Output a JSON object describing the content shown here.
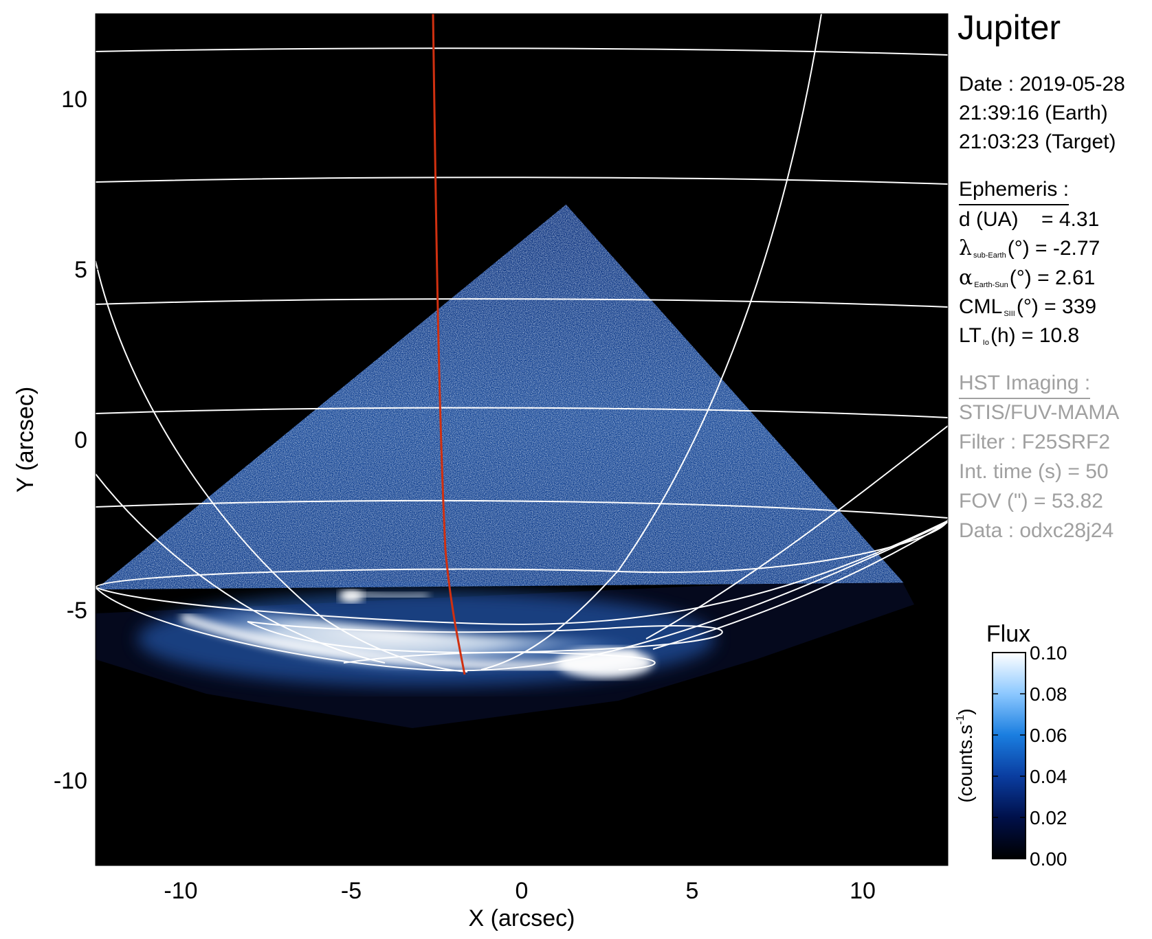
{
  "chart_data": {
    "type": "heatmap",
    "title": "Jupiter",
    "xlabel": "X (arcsec)",
    "ylabel": "Y (arcsec)",
    "xlim": [
      -12.5,
      12.5
    ],
    "ylim": [
      -12.5,
      12.5
    ],
    "x_ticks": [
      -10,
      -5,
      0,
      5,
      10
    ],
    "y_ticks": [
      -10,
      -5,
      0,
      5,
      10
    ],
    "x_tick_labels": [
      "-10",
      "-5",
      "0",
      "5",
      "10"
    ],
    "y_tick_labels": [
      "-10",
      "-5",
      "0",
      "5",
      "10"
    ],
    "grid": false,
    "image_region": {
      "shape": "triangle",
      "vertices": [
        [
          -12.5,
          -4.4
        ],
        [
          1.3,
          6.9
        ],
        [
          11.2,
          -4.2
        ]
      ]
    },
    "auroral_oval_center": [
      -2.0,
      -6.7
    ],
    "io_footprint_spot": [
      -5.0,
      -4.6
    ],
    "reference_meridian_color": "#d03010",
    "colorbar": {
      "label": "Flux",
      "units": "(counts.s",
      "units_superscript": "-1",
      "units_close": ")",
      "range": [
        0.0,
        0.1
      ],
      "ticks": [
        "0.00",
        "0.02",
        "0.04",
        "0.06",
        "0.08",
        "0.10"
      ],
      "colors": [
        "#000000",
        "#00104a",
        "#0a3da0",
        "#1a7ee0",
        "#8cc8ff",
        "#ffffff"
      ]
    }
  },
  "info": {
    "title": "Jupiter",
    "date": "Date : 2019-05-28",
    "time_earth": "21:39:16 (Earth)",
    "time_target": "21:03:23 (Target)",
    "ephemeris_header": "Ephemeris :",
    "distance": "d (UA)    = 4.31",
    "lat_symbol": "λ",
    "lat_sub": "sub-Earth",
    "lat_rest": "(°) = -2.77",
    "phase_symbol": "α",
    "phase_sub": "Earth-Sun",
    "phase_rest": "(°) = 2.61",
    "cml_main": "CML",
    "cml_sub": "SIII",
    "cml_rest": "(°) = 339",
    "lt_main": "LT",
    "lt_sub": "Io",
    "lt_rest": "(h) = 10.8",
    "hst_header": "HST Imaging :",
    "instrument": "STIS/FUV-MAMA",
    "filter": "Filter : F25SRF2",
    "int_time": "Int. time (s) = 50",
    "fov": "FOV (\") = 53.82",
    "dataset": "Data : odxc28j24"
  }
}
